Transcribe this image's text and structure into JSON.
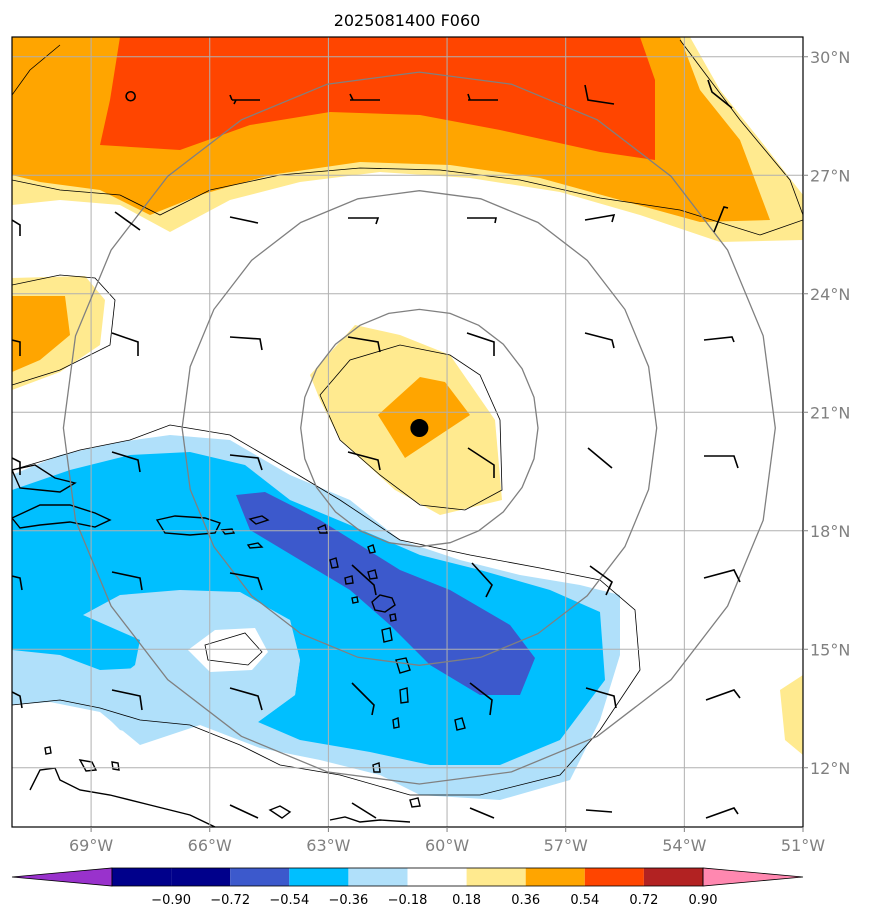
{
  "title": "2025081400 F060",
  "map": {
    "lon_range": [
      -71,
      -51
    ],
    "lat_range": [
      10.5,
      30.5
    ],
    "lon_ticks": [
      {
        "value": -69,
        "label": "69°W"
      },
      {
        "value": -66,
        "label": "66°W"
      },
      {
        "value": -63,
        "label": "63°W"
      },
      {
        "value": -60,
        "label": "60°W"
      },
      {
        "value": -57,
        "label": "57°W"
      },
      {
        "value": -54,
        "label": "54°W"
      },
      {
        "value": -51,
        "label": "51°W"
      }
    ],
    "lat_ticks": [
      {
        "value": 30,
        "label": "30°N"
      },
      {
        "value": 27,
        "label": "27°N"
      },
      {
        "value": 24,
        "label": "24°N"
      },
      {
        "value": 21,
        "label": "21°N"
      },
      {
        "value": 18,
        "label": "18°N"
      },
      {
        "value": 15,
        "label": "15°N"
      },
      {
        "value": 12,
        "label": "12°N"
      }
    ],
    "gridlines": true,
    "storm_center": {
      "lon": -60.7,
      "lat": 20.6
    },
    "minor_marker": {
      "lon": -68.0,
      "lat": 29.0
    },
    "range_rings_deg": [
      3,
      6,
      9
    ],
    "colors": {
      "pos_0_18_0_36": "#ffea8f",
      "pos_0_36_0_54": "#ffa500",
      "pos_0_54_0_72": "#ff4500",
      "neg_0_18_0_36": "#b0e0fa",
      "neg_0_36_0_54": "#00bfff",
      "neg_0_54_0_72": "#3c59cc",
      "coast": "#000000",
      "ring": "#808080",
      "grid": "#b0b0b0"
    }
  },
  "colorbar": {
    "ticks": [
      "−0.90",
      "−0.72",
      "−0.54",
      "−0.36",
      "−0.18",
      "0.18",
      "0.36",
      "0.54",
      "0.72",
      "0.90"
    ],
    "colors": [
      "#9932cc",
      "#00008b",
      "#00008b",
      "#3c59cc",
      "#00bfff",
      "#b0e0fa",
      "#ffffff",
      "#ffea8f",
      "#ffa500",
      "#ff4500",
      "#b22222",
      "#ff88b0"
    ]
  }
}
